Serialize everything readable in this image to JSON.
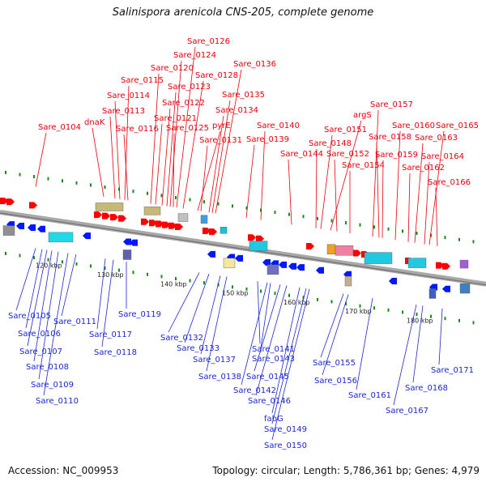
{
  "title": "Salinispora arenicola CNS-205, complete genome",
  "footer": {
    "accession": "Accession: NC_009953",
    "summary": "Topology: circular; Length: 5,786,361 bp; Genes: 4,979"
  },
  "colors": {
    "top_label": "#e8000c",
    "bottom_label": "#1c28d0",
    "backbone": "#a8a8a8",
    "tick": "#1a8a1a",
    "forward_gene": "#ff0000",
    "reverse_gene": "#0018ff"
  },
  "scale_ticks": [
    "120 kbp",
    "130 kbp",
    "140 kbp",
    "150 kbp",
    "160 kbp",
    "170 kbp",
    "180 kbp"
  ],
  "top_labels": [
    "Sare_0104",
    "dnaK",
    "Sare_0113",
    "Sare_0114",
    "Sare_0115",
    "Sare_0116",
    "Sare_0120",
    "Sare_0121",
    "Sare_0122",
    "Sare_0123",
    "Sare_0124",
    "Sare_0125",
    "Sare_0126",
    "Sare_0128",
    "pyrE",
    "Sare_0131",
    "Sare_0134",
    "Sare_0135",
    "Sare_0136",
    "Sare_0139",
    "Sare_0140",
    "Sare_0144",
    "Sare_0148",
    "Sare_0151",
    "argS",
    "Sare_0152",
    "Sare_0154",
    "Sare_0157",
    "Sare_0158",
    "Sare_0159",
    "Sare_0160",
    "Sare_0162",
    "Sare_0163",
    "Sare_0164",
    "Sare_0165",
    "Sare_0166"
  ],
  "bottom_labels": [
    "Sare_0105",
    "Sare_0106",
    "Sare_0107",
    "Sare_0108",
    "Sare_0109",
    "Sare_0110",
    "Sare_0111",
    "Sare_0117",
    "Sare_0118",
    "Sare_0119",
    "Sare_0132",
    "Sare_0133",
    "Sare_0137",
    "Sare_0138",
    "Sare_0141",
    "Sare_0142",
    "Sare_0143",
    "Sare_0145",
    "Sare_0146",
    "fabG",
    "Sare_0149",
    "Sare_0150",
    "Sare_0155",
    "Sare_0156",
    "Sare_0161",
    "Sare_0167",
    "Sare_0168",
    "Sare_0171"
  ]
}
